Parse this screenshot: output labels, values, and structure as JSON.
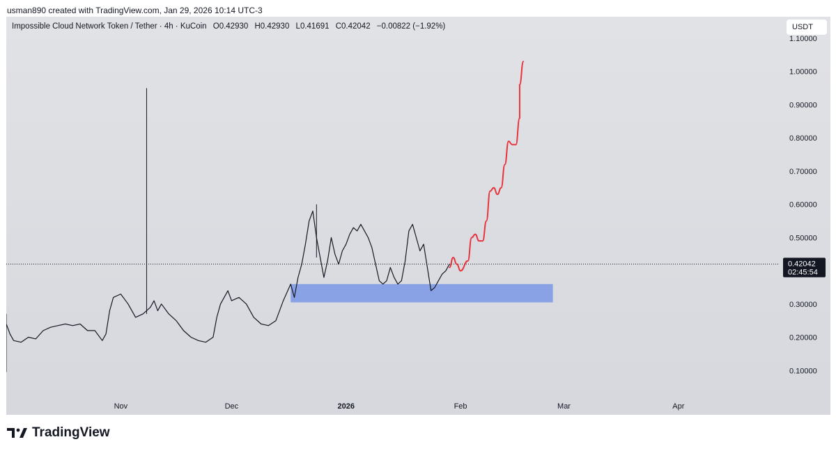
{
  "header": {
    "credit": "usman890 created with TradingView.com, Jan 29, 2026 10:14 UTC-3"
  },
  "legend": {
    "symbol": "Impossible Cloud Network Token / Tether · 4h · KuCoin",
    "open": "O0.42930",
    "high": "H0.42930",
    "low": "L0.41691",
    "close": "C0.42042",
    "change": "−0.00822 (−1.92%)"
  },
  "currency_button": "USDT",
  "brand": {
    "name": "TradingView",
    "logo_icon": "tradingview-logo-icon"
  },
  "colors": {
    "background": "#dcdde2",
    "price_line": "#131722",
    "projection": "#e8323c",
    "support_zone": "#7f9ae6",
    "price_tag": "#131722"
  },
  "chart_data": {
    "type": "line",
    "title": "Impossible Cloud Network Token / Tether · 4h · KuCoin",
    "y_tick_labels": [
      "0.10000",
      "0.20000",
      "0.30000",
      "0.40000",
      "0.50000",
      "0.60000",
      "0.70000",
      "0.80000",
      "0.90000",
      "1.00000",
      "1.10000"
    ],
    "y_ticks": [
      0.1,
      0.2,
      0.3,
      0.4,
      0.5,
      0.6,
      0.7,
      0.8,
      0.9,
      1.0,
      1.1
    ],
    "ylim": [
      0.0,
      1.165
    ],
    "x_range": [
      "2025-10-01",
      "2026-04-28"
    ],
    "x_ticks": [
      {
        "date": "2025-11-01",
        "label": "Nov",
        "bold": false
      },
      {
        "date": "2025-12-01",
        "label": "Dec",
        "bold": false
      },
      {
        "date": "2026-01-01",
        "label": "2026",
        "bold": true
      },
      {
        "date": "2026-02-01",
        "label": "Feb",
        "bold": false
      },
      {
        "date": "2026-03-01",
        "label": "Mar",
        "bold": false
      },
      {
        "date": "2026-04-01",
        "label": "Apr",
        "bold": false
      }
    ],
    "grid": false,
    "current_price": {
      "value": 0.42042,
      "label": "0.42042",
      "countdown": "02:45:54"
    },
    "series": [
      {
        "points": [
          [
            "2025-10-01",
            0.24
          ],
          [
            "2025-10-02",
            0.21
          ],
          [
            "2025-10-03",
            0.19
          ],
          [
            "2025-10-05",
            0.185
          ],
          [
            "2025-10-07",
            0.2
          ],
          [
            "2025-10-09",
            0.195
          ],
          [
            "2025-10-11",
            0.22
          ],
          [
            "2025-10-13",
            0.23
          ],
          [
            "2025-10-15",
            0.235
          ],
          [
            "2025-10-17",
            0.24
          ],
          [
            "2025-10-19",
            0.235
          ],
          [
            "2025-10-21",
            0.24
          ],
          [
            "2025-10-23",
            0.22
          ],
          [
            "2025-10-25",
            0.22
          ],
          [
            "2025-10-27",
            0.19
          ],
          [
            "2025-10-28",
            0.21
          ],
          [
            "2025-10-29",
            0.28
          ],
          [
            "2025-10-30",
            0.32
          ],
          [
            "2025-11-01",
            0.33
          ],
          [
            "2025-11-03",
            0.3
          ],
          [
            "2025-11-05",
            0.26
          ],
          [
            "2025-11-07",
            0.27
          ],
          [
            "2025-11-09",
            0.29
          ],
          [
            "2025-11-10",
            0.31
          ],
          [
            "2025-11-11",
            0.28
          ],
          [
            "2025-11-12",
            0.3
          ],
          [
            "2025-11-14",
            0.27
          ],
          [
            "2025-11-16",
            0.25
          ],
          [
            "2025-11-18",
            0.22
          ],
          [
            "2025-11-20",
            0.2
          ],
          [
            "2025-11-22",
            0.19
          ],
          [
            "2025-11-24",
            0.185
          ],
          [
            "2025-11-26",
            0.2
          ],
          [
            "2025-11-27",
            0.26
          ],
          [
            "2025-11-28",
            0.3
          ],
          [
            "2025-11-29",
            0.32
          ],
          [
            "2025-11-30",
            0.34
          ],
          [
            "2025-12-01",
            0.31
          ],
          [
            "2025-12-03",
            0.32
          ],
          [
            "2025-12-05",
            0.3
          ],
          [
            "2025-12-07",
            0.26
          ],
          [
            "2025-12-09",
            0.24
          ],
          [
            "2025-12-11",
            0.235
          ],
          [
            "2025-12-13",
            0.25
          ],
          [
            "2025-12-15",
            0.31
          ],
          [
            "2025-12-17",
            0.36
          ],
          [
            "2025-12-18",
            0.32
          ],
          [
            "2025-12-19",
            0.38
          ],
          [
            "2025-12-20",
            0.42
          ],
          [
            "2025-12-21",
            0.48
          ],
          [
            "2025-12-22",
            0.55
          ],
          [
            "2025-12-23",
            0.58
          ],
          [
            "2025-12-24",
            0.5
          ],
          [
            "2025-12-25",
            0.44
          ],
          [
            "2025-12-26",
            0.38
          ],
          [
            "2025-12-27",
            0.43
          ],
          [
            "2025-12-28",
            0.5
          ],
          [
            "2025-12-29",
            0.45
          ],
          [
            "2025-12-30",
            0.42
          ],
          [
            "2025-12-31",
            0.46
          ],
          [
            "2026-01-01",
            0.48
          ],
          [
            "2026-01-02",
            0.51
          ],
          [
            "2026-01-03",
            0.53
          ],
          [
            "2026-01-04",
            0.52
          ],
          [
            "2026-01-05",
            0.54
          ],
          [
            "2026-01-06",
            0.52
          ],
          [
            "2026-01-07",
            0.5
          ],
          [
            "2026-01-08",
            0.47
          ],
          [
            "2026-01-09",
            0.42
          ],
          [
            "2026-01-10",
            0.37
          ],
          [
            "2026-01-11",
            0.36
          ],
          [
            "2026-01-12",
            0.37
          ],
          [
            "2026-01-13",
            0.41
          ],
          [
            "2026-01-14",
            0.38
          ],
          [
            "2026-01-15",
            0.36
          ],
          [
            "2026-01-16",
            0.37
          ],
          [
            "2026-01-17",
            0.43
          ],
          [
            "2026-01-18",
            0.52
          ],
          [
            "2026-01-19",
            0.54
          ],
          [
            "2026-01-20",
            0.5
          ],
          [
            "2026-01-21",
            0.46
          ],
          [
            "2026-01-22",
            0.48
          ],
          [
            "2026-01-23",
            0.41
          ],
          [
            "2026-01-24",
            0.34
          ],
          [
            "2026-01-25",
            0.35
          ],
          [
            "2026-01-26",
            0.37
          ],
          [
            "2026-01-27",
            0.39
          ],
          [
            "2026-01-28",
            0.4
          ],
          [
            "2026-01-29",
            0.42042
          ]
        ],
        "wicks": [
          {
            "date": "2025-10-01",
            "low": 0.095,
            "high": 0.27
          },
          {
            "date": "2025-11-08",
            "low": 0.27,
            "high": 0.95
          },
          {
            "date": "2025-12-24",
            "low": 0.44,
            "high": 0.6
          }
        ]
      },
      {
        "points": [
          [
            "2026-01-29",
            0.41
          ],
          [
            "2026-01-30",
            0.44
          ],
          [
            "2026-01-31",
            0.42
          ],
          [
            "2026-02-01",
            0.4
          ],
          [
            "2026-02-03",
            0.43
          ],
          [
            "2026-02-04",
            0.5
          ],
          [
            "2026-02-05",
            0.51
          ],
          [
            "2026-02-06",
            0.49
          ],
          [
            "2026-02-07",
            0.49
          ],
          [
            "2026-02-08",
            0.55
          ],
          [
            "2026-02-09",
            0.64
          ],
          [
            "2026-02-10",
            0.65
          ],
          [
            "2026-02-11",
            0.63
          ],
          [
            "2026-02-12",
            0.65
          ],
          [
            "2026-02-13",
            0.72
          ],
          [
            "2026-02-14",
            0.79
          ],
          [
            "2026-02-15",
            0.78
          ],
          [
            "2026-02-16",
            0.78
          ],
          [
            "2026-02-17",
            0.86
          ],
          [
            "2026-02-17",
            0.96
          ],
          [
            "2026-02-18",
            1.03
          ]
        ]
      }
    ],
    "shapes": [
      {
        "type": "rectangle",
        "x": [
          "2025-12-17",
          "2026-02-26"
        ],
        "y": [
          0.305,
          0.36
        ]
      }
    ]
  }
}
